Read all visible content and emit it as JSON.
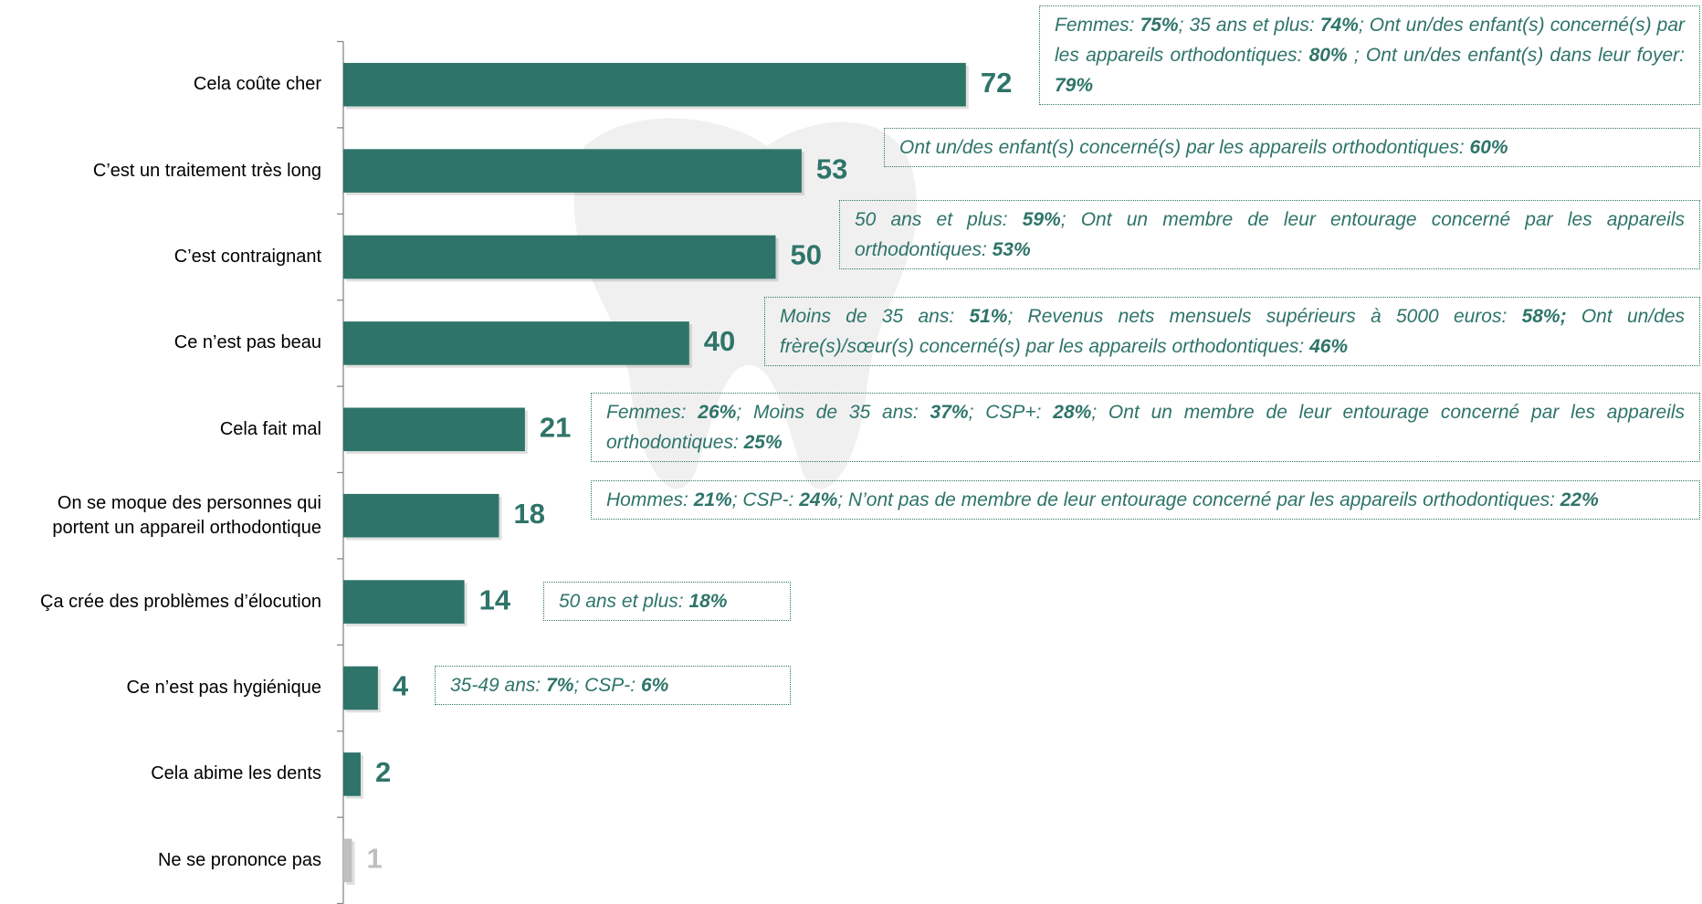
{
  "chart_data": {
    "type": "bar",
    "orientation": "horizontal",
    "categories": [
      "Cela coûte cher",
      "C’est un traitement très long",
      "C’est contraignant",
      "Ce n’est pas beau",
      "Cela fait mal",
      "On se moque des personnes qui\nportent un appareil orthodontique",
      "Ça crée des problèmes d’élocution",
      "Ce n’est pas hygiénique",
      "Cela abime les dents",
      "Ne se prononce pas"
    ],
    "values": [
      72,
      53,
      50,
      40,
      21,
      18,
      14,
      4,
      2,
      1
    ],
    "colors": [
      "#2e7469",
      "#2e7469",
      "#2e7469",
      "#2e7469",
      "#2e7469",
      "#2e7469",
      "#2e7469",
      "#2e7469",
      "#2e7469",
      "#bfbfbf"
    ],
    "xlim": [
      0,
      100
    ],
    "annotations": [
      {
        "parts": [
          {
            "text": "Femmes: ",
            "bold": false
          },
          {
            "text": "75%",
            "bold": true
          },
          {
            "text": "; 35 ans et plus: ",
            "bold": false
          },
          {
            "text": "74%",
            "bold": true
          },
          {
            "text": "; Ont un/des enfant(s) concerné(s) par les appareils orthodontiques: ",
            "bold": false
          },
          {
            "text": "80%",
            "bold": true
          },
          {
            "text": " ; Ont un/des enfant(s) dans leur foyer: ",
            "bold": false
          },
          {
            "text": "79%",
            "bold": true
          }
        ]
      },
      {
        "parts": [
          {
            "text": "Ont un/des enfant(s) concerné(s) par les appareils orthodontiques: ",
            "bold": false
          },
          {
            "text": "60%",
            "bold": true
          }
        ]
      },
      {
        "parts": [
          {
            "text": "50 ans et plus: ",
            "bold": false
          },
          {
            "text": "59%",
            "bold": true
          },
          {
            "text": "; Ont un membre de leur entourage concerné par les appareils orthodontiques: ",
            "bold": false
          },
          {
            "text": "53%",
            "bold": true
          }
        ]
      },
      {
        "parts": [
          {
            "text": "Moins de 35 ans: ",
            "bold": false
          },
          {
            "text": "51%",
            "bold": true
          },
          {
            "text": "; Revenus nets mensuels supérieurs à 5000 euros: ",
            "bold": false
          },
          {
            "text": "58%;",
            "bold": true
          },
          {
            "text": " Ont un/des frère(s)/sœur(s) concerné(s) par les appareils orthodontiques: ",
            "bold": false
          },
          {
            "text": "46%",
            "bold": true
          }
        ]
      },
      {
        "parts": [
          {
            "text": "Femmes: ",
            "bold": false
          },
          {
            "text": "26%",
            "bold": true
          },
          {
            "text": "; Moins de 35 ans: ",
            "bold": false
          },
          {
            "text": "37%",
            "bold": true
          },
          {
            "text": "; CSP+: ",
            "bold": false
          },
          {
            "text": "28%",
            "bold": true
          },
          {
            "text": "; Ont un membre de leur entourage concerné par les appareils orthodontiques: ",
            "bold": false
          },
          {
            "text": "25%",
            "bold": true
          }
        ]
      },
      {
        "parts": [
          {
            "text": "Hommes: ",
            "bold": false
          },
          {
            "text": "21%",
            "bold": true
          },
          {
            "text": "; CSP-: ",
            "bold": false
          },
          {
            "text": "24%",
            "bold": true
          },
          {
            "text": "; N’ont pas de membre de leur entourage concerné par les appareils orthodontiques: ",
            "bold": false
          },
          {
            "text": "22%",
            "bold": true
          }
        ]
      },
      {
        "parts": [
          {
            "text": "50 ans et plus: ",
            "bold": false
          },
          {
            "text": "18%",
            "bold": true
          }
        ]
      },
      {
        "parts": [
          {
            "text": "35-49 ans: ",
            "bold": false
          },
          {
            "text": "7%",
            "bold": true
          },
          {
            "text": "; CSP-: ",
            "bold": false
          },
          {
            "text": "6%",
            "bold": true
          }
        ]
      }
    ]
  }
}
